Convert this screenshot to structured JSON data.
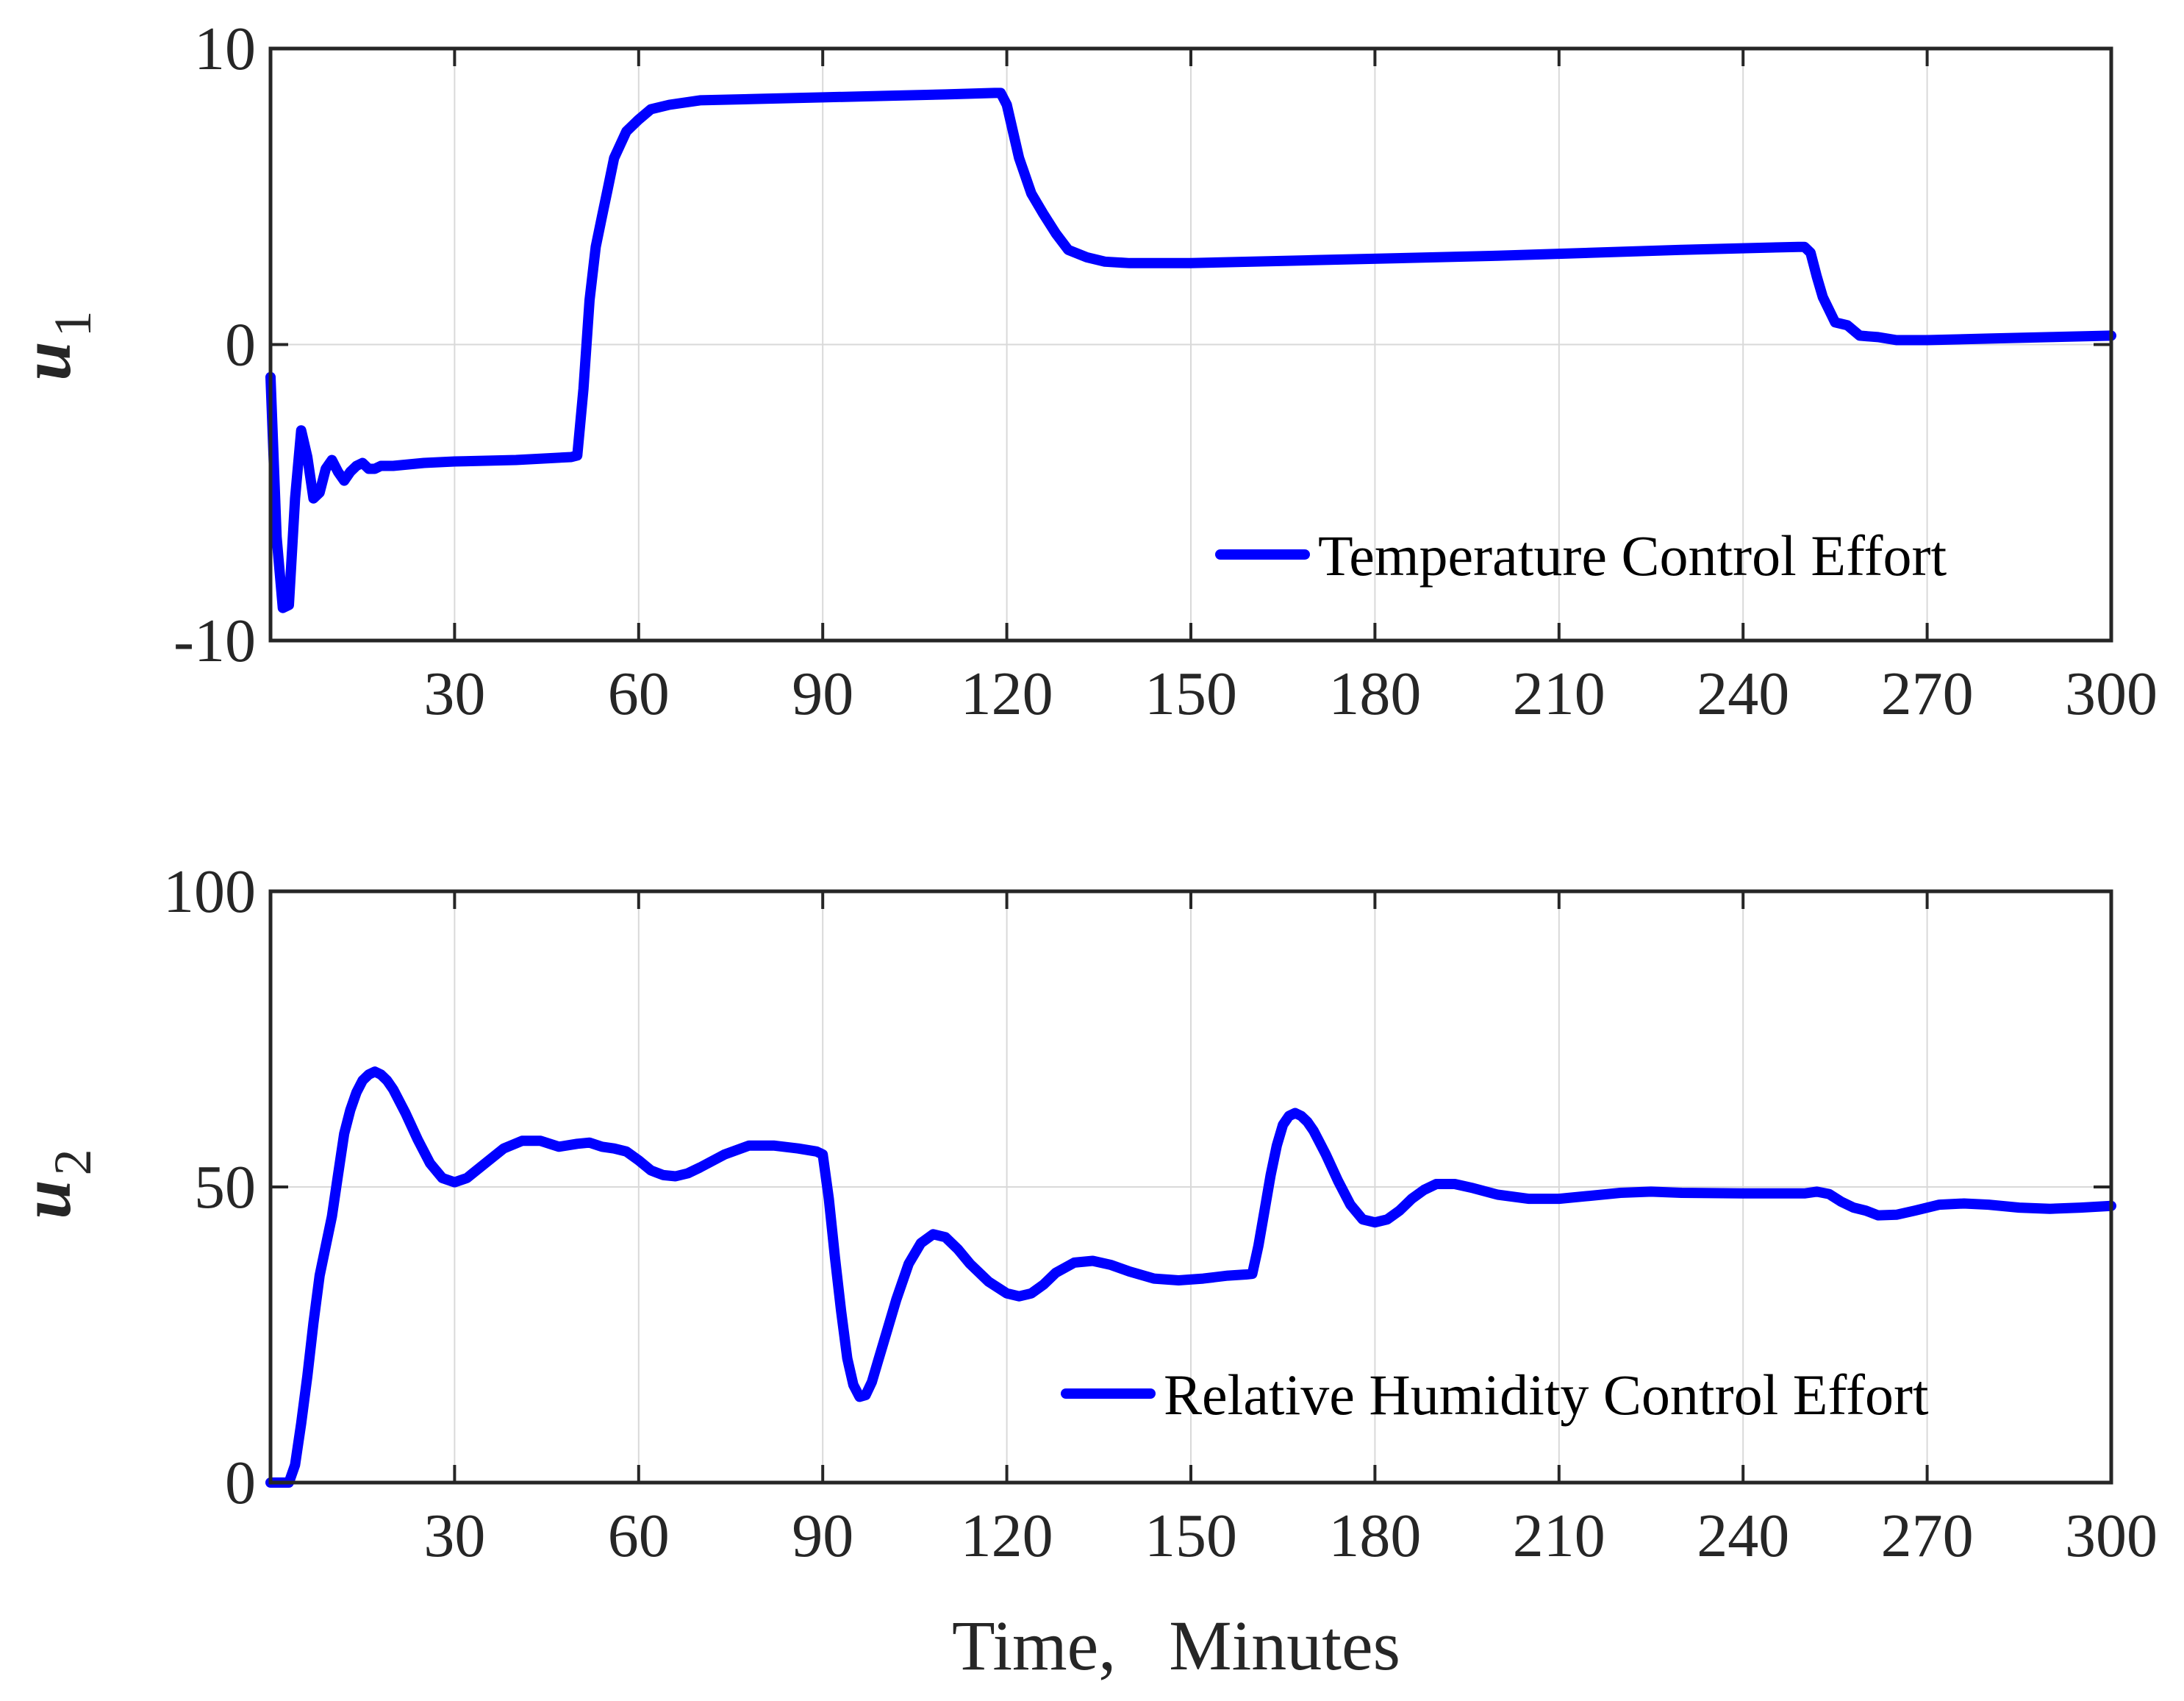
{
  "figure": {
    "xlabel": "Time,   Minutes",
    "series_color": "#0000FF"
  },
  "chart_data": [
    {
      "type": "line",
      "ylabel": "u",
      "ylabel_subscript": "1",
      "xlim": [
        0,
        300
      ],
      "ylim": [
        -10,
        10
      ],
      "xticks": [
        30,
        60,
        90,
        120,
        150,
        180,
        210,
        240,
        270,
        300
      ],
      "yticks": [
        -10,
        0,
        10
      ],
      "ytick_labels": [
        "-10",
        "0",
        "10"
      ],
      "grid": true,
      "legend_position": "bottom-right",
      "series": [
        {
          "name": "Temperature Control Effort",
          "x": [
            0,
            1,
            2,
            3,
            4,
            5,
            6,
            7,
            8,
            9,
            10,
            11,
            12,
            13,
            14,
            15,
            16,
            17,
            18,
            20,
            25,
            30,
            40,
            49,
            50,
            51,
            52,
            53,
            54,
            55,
            56,
            58,
            60,
            62,
            65,
            70,
            80,
            90,
            100,
            110,
            118,
            119,
            120,
            122,
            124,
            126,
            128,
            130,
            133,
            136,
            140,
            150,
            170,
            200,
            230,
            249,
            250,
            251,
            252,
            253,
            255,
            257,
            259,
            262,
            265,
            270,
            280,
            290,
            300
          ],
          "y": [
            -1.1,
            -6.5,
            -8.9,
            -8.8,
            -5.2,
            -2.9,
            -3.8,
            -5.2,
            -5.0,
            -4.2,
            -3.9,
            -4.3,
            -4.6,
            -4.3,
            -4.1,
            -4.0,
            -4.2,
            -4.2,
            -4.1,
            -4.1,
            -4.0,
            -3.95,
            -3.9,
            -3.8,
            -3.75,
            -1.5,
            1.5,
            3.3,
            4.3,
            5.3,
            6.3,
            7.2,
            7.6,
            7.95,
            8.1,
            8.25,
            8.3,
            8.35,
            8.4,
            8.45,
            8.5,
            8.5,
            8.1,
            6.3,
            5.1,
            4.4,
            3.75,
            3.2,
            2.95,
            2.8,
            2.75,
            2.75,
            2.85,
            3.0,
            3.2,
            3.3,
            3.3,
            3.1,
            2.3,
            1.6,
            0.75,
            0.65,
            0.3,
            0.25,
            0.15,
            0.15,
            0.2,
            0.25,
            0.3
          ]
        }
      ]
    },
    {
      "type": "line",
      "ylabel": "u",
      "ylabel_subscript": "2",
      "xlim": [
        0,
        300
      ],
      "ylim": [
        0,
        100
      ],
      "xticks": [
        30,
        60,
        90,
        120,
        150,
        180,
        210,
        240,
        270,
        300
      ],
      "yticks": [
        0,
        50,
        100
      ],
      "ytick_labels": [
        "0",
        "50",
        "100"
      ],
      "grid": true,
      "legend_position": "bottom-right",
      "series": [
        {
          "name": "Relative Humidity Control Effort",
          "x": [
            0,
            1,
            2,
            3,
            4,
            5,
            6,
            7,
            8,
            9,
            10,
            11,
            12,
            13,
            14,
            15,
            16,
            17,
            18,
            19,
            20,
            22,
            24,
            26,
            28,
            30,
            32,
            35,
            38,
            41,
            44,
            47,
            50,
            52,
            54,
            56,
            58,
            60,
            62,
            64,
            66,
            68,
            70,
            74,
            78,
            82,
            86,
            89,
            90,
            91,
            92,
            93,
            94,
            95,
            96,
            97,
            98,
            99,
            100,
            102,
            104,
            106,
            108,
            110,
            112,
            114,
            117,
            120,
            122,
            124,
            126,
            128,
            131,
            134,
            137,
            140,
            144,
            148,
            152,
            156,
            159,
            160,
            161,
            162,
            163,
            164,
            165,
            166,
            167,
            168,
            169,
            170,
            171,
            172,
            174,
            176,
            178,
            180,
            182,
            184,
            186,
            188,
            190,
            193,
            196,
            200,
            205,
            210,
            215,
            220,
            225,
            230,
            240,
            250,
            252,
            254,
            256,
            258,
            260,
            262,
            265,
            268,
            272,
            276,
            280,
            285,
            290,
            295,
            300
          ],
          "y": [
            0,
            0,
            0,
            0,
            3,
            10,
            18,
            27,
            35,
            40,
            45,
            52,
            59,
            63,
            66,
            68,
            69,
            69.5,
            69,
            68,
            66.5,
            62.5,
            58,
            54,
            51.5,
            50.8,
            51.5,
            54,
            56.5,
            57.8,
            57.8,
            56.8,
            57.3,
            57.5,
            56.8,
            56.5,
            56,
            54.5,
            52.8,
            52,
            51.8,
            52.3,
            53.3,
            55.5,
            57,
            57,
            56.5,
            56,
            55.5,
            48,
            38,
            29,
            21,
            16.5,
            14.5,
            14.8,
            17,
            20.5,
            24,
            31,
            37,
            40.5,
            42,
            41.5,
            39.5,
            37,
            34,
            32,
            31.5,
            32,
            33.5,
            35.5,
            37.2,
            37.5,
            36.8,
            35.7,
            34.5,
            34.2,
            34.5,
            35,
            35.2,
            35.3,
            40,
            46,
            52,
            57,
            60.5,
            62,
            62.5,
            62,
            61,
            59.5,
            57.5,
            55.5,
            51,
            47,
            44.5,
            44,
            44.5,
            46,
            48,
            49.5,
            50.5,
            50.5,
            49.8,
            48.7,
            48,
            48,
            48.5,
            49,
            49.2,
            49,
            48.9,
            48.9,
            49.2,
            48.8,
            47.5,
            46.5,
            46,
            45.2,
            45.3,
            46,
            47,
            47.2,
            47,
            46.5,
            46.3,
            46.5,
            46.8
          ]
        }
      ]
    }
  ]
}
